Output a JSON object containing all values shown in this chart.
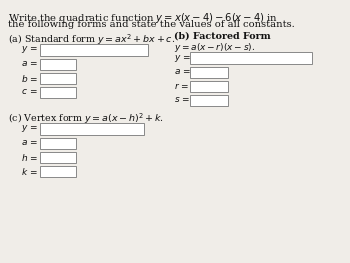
{
  "title_line1": "Write the quadratic function $y = x(x-4) - 6(x-4)$ in",
  "title_line2": "the following forms and state the values of all constants.",
  "section_a_label": "(a) Standard form $y = ax^2 + bx + c$.",
  "section_b_label": "(b) Factored Form",
  "section_b_sub": "$y = a(x - r)(x - s)$.",
  "section_c_label": "(c) Vertex form $y = a(x - h)^2 + k$.",
  "bg_color": "#f0ede8",
  "box_color": "#ffffff",
  "box_edge": "#888888",
  "text_color": "#111111"
}
